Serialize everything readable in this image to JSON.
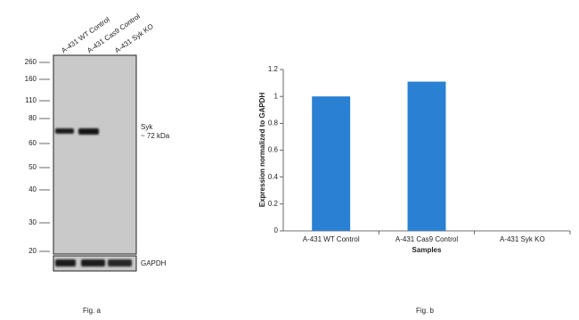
{
  "blot": {
    "lanes": [
      "A-431 WT Control",
      "A-431 Cas9 Control",
      "A-431 Syk KO"
    ],
    "markers": [
      260,
      160,
      110,
      80,
      60,
      50,
      40,
      30,
      20
    ],
    "target": "Syk",
    "size": "~ 72 kDa",
    "loading_control": "GAPDH",
    "caption": "Fig. a"
  },
  "chart_data": {
    "type": "bar",
    "caption": "Fig. b",
    "x_label": "Samples",
    "y_label": "Expression  normalized to GAPDH",
    "categories": [
      "A-431 WT Control",
      "A-431 Cas9 Control",
      "A-431 Syk KO"
    ],
    "values": [
      1.0,
      1.11,
      0
    ],
    "color": "#2a80d2",
    "ylim": [
      0,
      1.2
    ],
    "yticks": [
      0,
      0.2,
      0.4,
      0.6,
      0.8,
      1,
      1.2
    ]
  }
}
